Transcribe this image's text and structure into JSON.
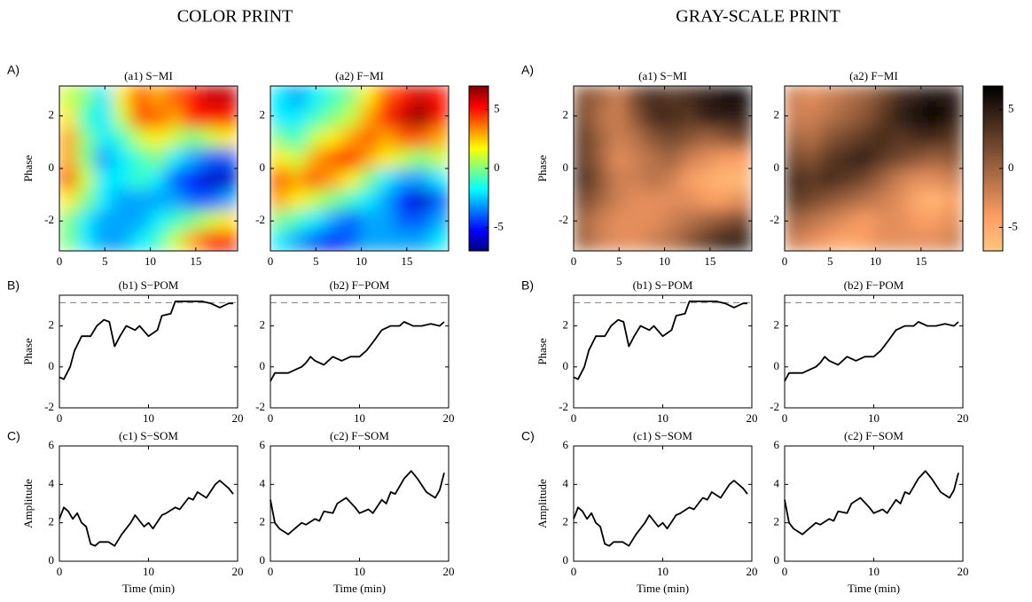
{
  "headings": [
    "COLOR PRINT",
    "GRAY-SCALE PRINT"
  ],
  "row_labels": [
    "A)",
    "B)",
    "C)"
  ],
  "chart_data": [
    {
      "type": "heatmap",
      "title": "(a1) S−MI",
      "ylabel": "Phase",
      "xlim": [
        0,
        19.6
      ],
      "xticks": [
        0,
        5,
        10,
        15
      ],
      "ylim": [
        -3.14,
        3.14
      ],
      "yticks": [
        -2,
        0,
        2
      ],
      "colormap": "jet",
      "clim": [
        -7,
        7
      ],
      "z": [
        [
          0,
          -2,
          -3,
          -3,
          -2,
          -1,
          1,
          3,
          5,
          5
        ],
        [
          0,
          -2,
          -3,
          -3,
          -3,
          -2,
          -1,
          0,
          1,
          2
        ],
        [
          2,
          0,
          -2,
          -3,
          -3,
          -3,
          -3,
          -4,
          -4,
          -3
        ],
        [
          4,
          1,
          -2,
          -2,
          -1,
          -2,
          -4,
          -5,
          -6,
          -6
        ],
        [
          3,
          0,
          -3,
          -2,
          -1,
          0,
          -2,
          -3,
          -4,
          -4
        ],
        [
          3,
          0,
          -2,
          -1,
          1,
          2,
          1,
          0,
          1,
          2
        ],
        [
          2,
          -1,
          -2,
          1,
          4,
          4,
          3,
          5,
          5,
          5
        ],
        [
          1,
          0,
          -2,
          2,
          4,
          3,
          4,
          5,
          6,
          6
        ]
      ]
    },
    {
      "type": "heatmap",
      "title": "(a2) F−MI",
      "xlim": [
        0,
        19.6
      ],
      "xticks": [
        0,
        5,
        10,
        15
      ],
      "ylim": [
        -3.14,
        3.14
      ],
      "yticks": [
        -2,
        0,
        2
      ],
      "colormap": "jet",
      "clim": [
        -7,
        7
      ],
      "colorbar_ticks": [
        -5,
        0,
        5
      ],
      "z": [
        [
          -2,
          -3,
          -4,
          -5,
          -4,
          -3,
          -3,
          -3,
          -3,
          -2
        ],
        [
          0,
          -1,
          -2,
          -3,
          -4,
          -3,
          -3,
          -4,
          -4,
          -3
        ],
        [
          3,
          2,
          1,
          0,
          -1,
          -2,
          -3,
          -5,
          -6,
          -4
        ],
        [
          4,
          3,
          4,
          3,
          2,
          0,
          -2,
          -3,
          -3,
          -2
        ],
        [
          2,
          1,
          3,
          4,
          5,
          3,
          2,
          1,
          0,
          1
        ],
        [
          0,
          -1,
          1,
          2,
          3,
          4,
          3,
          4,
          4,
          3
        ],
        [
          -2,
          -2,
          -1,
          0,
          1,
          3,
          5,
          6,
          7,
          5
        ],
        [
          -2,
          -3,
          -2,
          -1,
          0,
          2,
          4,
          5,
          6,
          5
        ]
      ]
    },
    {
      "type": "line",
      "title": "(b1) S−POM",
      "ylabel": "Phase",
      "xlim": [
        0,
        20
      ],
      "xticks": [
        0,
        10,
        20
      ],
      "ylim": [
        -2,
        3.5
      ],
      "yticks": [
        -2,
        0,
        2
      ],
      "color": "#000000",
      "reference_line": {
        "value": 3.14,
        "color": "#2db82d"
      },
      "x": [
        0,
        0.5,
        1.2,
        1.7,
        2.5,
        3.5,
        4.2,
        5,
        5.6,
        6.2,
        6.8,
        7.5,
        8.5,
        9,
        10,
        11,
        11.5,
        12.5,
        13,
        15,
        16,
        17,
        18,
        19,
        19.5
      ],
      "values": [
        -0.5,
        -0.6,
        0,
        0.8,
        1.5,
        1.5,
        2,
        2.3,
        2.2,
        1,
        1.5,
        2,
        1.8,
        2,
        1.5,
        1.8,
        2.5,
        2.6,
        3.2,
        3.2,
        3.2,
        3.1,
        2.9,
        3.1,
        3.1
      ]
    },
    {
      "type": "line",
      "title": "(b2) F−POM",
      "xlim": [
        0,
        20
      ],
      "xticks": [
        0,
        10,
        20
      ],
      "ylim": [
        -2,
        3.5
      ],
      "yticks": [
        -2,
        0,
        2
      ],
      "color": "#000000",
      "reference_line": {
        "value": 3.14,
        "color": "#2db82d"
      },
      "x": [
        0,
        0.5,
        2,
        3,
        3.5,
        4,
        4.5,
        5,
        6,
        7,
        8,
        9,
        10,
        10.8,
        11.5,
        12.5,
        13.5,
        14.5,
        15,
        16,
        17,
        18,
        19,
        19.5
      ],
      "values": [
        -0.7,
        -0.3,
        -0.3,
        -0.1,
        0,
        0.2,
        0.5,
        0.3,
        0.1,
        0.5,
        0.3,
        0.5,
        0.5,
        0.8,
        1.2,
        1.8,
        2,
        2,
        2.2,
        2,
        2,
        2.1,
        2,
        2.2
      ]
    },
    {
      "type": "line",
      "title": "(c1) S−SOM",
      "ylabel": "Amplitude",
      "xlabel": "Time (min)",
      "xlim": [
        0,
        20
      ],
      "xticks": [
        0,
        10,
        20
      ],
      "ylim": [
        0,
        6
      ],
      "yticks": [
        0,
        2,
        4,
        6
      ],
      "color": "#000000",
      "x": [
        0,
        0.5,
        1,
        1.5,
        2,
        2.5,
        3,
        3.5,
        4,
        4.5,
        5.5,
        6.2,
        7,
        8,
        8.5,
        9.5,
        10,
        10.5,
        11.5,
        12,
        13,
        13.5,
        14.5,
        15,
        15.5,
        16.5,
        17.5,
        18,
        19,
        19.5
      ],
      "values": [
        2.2,
        2.8,
        2.6,
        2.2,
        2.5,
        2,
        1.8,
        0.9,
        0.8,
        1,
        1,
        0.8,
        1.4,
        2,
        2.4,
        1.8,
        2,
        1.7,
        2.4,
        2.5,
        2.8,
        2.7,
        3.3,
        3.2,
        3.6,
        3.3,
        4,
        4.2,
        3.8,
        3.5
      ]
    },
    {
      "type": "line",
      "title": "(c2) F−SOM",
      "xlabel": "Time (min)",
      "xlim": [
        0,
        20
      ],
      "xticks": [
        0,
        10,
        20
      ],
      "ylim": [
        0,
        6
      ],
      "yticks": [
        0,
        2,
        4,
        6
      ],
      "color": "#000000",
      "x": [
        0,
        0.5,
        1,
        2,
        2.5,
        3.5,
        4,
        5,
        5.5,
        6,
        7,
        7.5,
        8.5,
        9.5,
        10,
        11,
        11.5,
        12.5,
        13,
        13.5,
        14,
        15,
        15.8,
        16.5,
        17.5,
        18.5,
        19,
        19.5
      ],
      "values": [
        3.2,
        2,
        1.7,
        1.4,
        1.6,
        2,
        1.9,
        2.2,
        2.1,
        2.6,
        2.5,
        3,
        3.3,
        2.8,
        2.5,
        2.7,
        2.5,
        3.2,
        3,
        3.6,
        3.5,
        4.3,
        4.7,
        4.3,
        3.6,
        3.3,
        3.7,
        4.6
      ]
    },
    {
      "type": "heatmap",
      "title": "(a1) S−MI",
      "ylabel": "Phase",
      "xlim": [
        0,
        19.6
      ],
      "xticks": [
        0,
        5,
        10,
        15
      ],
      "ylim": [
        -3.14,
        3.14
      ],
      "yticks": [
        -2,
        0,
        2
      ],
      "colormap": "copper-reversed",
      "clim": [
        -7,
        7
      ],
      "z": [
        [
          0,
          -2,
          -3,
          -3,
          -2,
          -1,
          1,
          3,
          5,
          5
        ],
        [
          0,
          -2,
          -3,
          -3,
          -3,
          -2,
          -1,
          0,
          1,
          2
        ],
        [
          2,
          0,
          -2,
          -3,
          -3,
          -3,
          -3,
          -4,
          -4,
          -3
        ],
        [
          4,
          1,
          -2,
          -2,
          -1,
          -2,
          -4,
          -5,
          -6,
          -6
        ],
        [
          3,
          0,
          -3,
          -2,
          -1,
          0,
          -2,
          -3,
          -4,
          -4
        ],
        [
          3,
          0,
          -2,
          -1,
          1,
          2,
          1,
          0,
          1,
          2
        ],
        [
          2,
          -1,
          -2,
          1,
          4,
          4,
          3,
          5,
          5,
          5
        ],
        [
          1,
          0,
          -2,
          2,
          4,
          3,
          4,
          5,
          6,
          6
        ]
      ]
    },
    {
      "type": "heatmap",
      "title": "(a2) F−MI",
      "xlim": [
        0,
        19.6
      ],
      "xticks": [
        0,
        5,
        10,
        15
      ],
      "ylim": [
        -3.14,
        3.14
      ],
      "yticks": [
        -2,
        0,
        2
      ],
      "colormap": "copper-reversed",
      "clim": [
        -7,
        7
      ],
      "colorbar_ticks": [
        -5,
        0,
        5
      ],
      "z": [
        [
          -2,
          -3,
          -4,
          -5,
          -4,
          -3,
          -3,
          -3,
          -3,
          -2
        ],
        [
          0,
          -1,
          -2,
          -3,
          -4,
          -3,
          -3,
          -4,
          -4,
          -3
        ],
        [
          3,
          2,
          1,
          0,
          -1,
          -2,
          -3,
          -5,
          -6,
          -4
        ],
        [
          4,
          3,
          4,
          3,
          2,
          0,
          -2,
          -3,
          -3,
          -2
        ],
        [
          2,
          1,
          3,
          4,
          5,
          3,
          2,
          1,
          0,
          1
        ],
        [
          0,
          -1,
          1,
          2,
          3,
          4,
          3,
          4,
          4,
          3
        ],
        [
          -2,
          -2,
          -1,
          0,
          1,
          3,
          5,
          6,
          7,
          5
        ],
        [
          -2,
          -3,
          -2,
          -1,
          0,
          2,
          4,
          5,
          6,
          5
        ]
      ]
    },
    {
      "type": "line",
      "title": "(b1) S−POM",
      "ylabel": "Phase",
      "xlim": [
        0,
        20
      ],
      "xticks": [
        0,
        10,
        20
      ],
      "ylim": [
        -2,
        3.5
      ],
      "yticks": [
        -2,
        0,
        2
      ],
      "color": "#000000",
      "reference_line": {
        "value": 3.14,
        "color": "#2db82d"
      },
      "x": [
        0,
        0.5,
        1.2,
        1.7,
        2.5,
        3.5,
        4.2,
        5,
        5.6,
        6.2,
        6.8,
        7.5,
        8.5,
        9,
        10,
        11,
        11.5,
        12.5,
        13,
        15,
        16,
        17,
        18,
        19,
        19.5
      ],
      "values": [
        -0.5,
        -0.6,
        0,
        0.8,
        1.5,
        1.5,
        2,
        2.3,
        2.2,
        1,
        1.5,
        2,
        1.8,
        2,
        1.5,
        1.8,
        2.5,
        2.6,
        3.2,
        3.2,
        3.2,
        3.1,
        2.9,
        3.1,
        3.1
      ]
    },
    {
      "type": "line",
      "title": "(b2) F−POM",
      "xlim": [
        0,
        20
      ],
      "xticks": [
        0,
        10,
        20
      ],
      "ylim": [
        -2,
        3.5
      ],
      "yticks": [
        -2,
        0,
        2
      ],
      "color": "#000000",
      "reference_line": {
        "value": 3.14,
        "color": "#2db82d"
      },
      "x": [
        0,
        0.5,
        2,
        3,
        3.5,
        4,
        4.5,
        5,
        6,
        7,
        8,
        9,
        10,
        10.8,
        11.5,
        12.5,
        13.5,
        14.5,
        15,
        16,
        17,
        18,
        19,
        19.5
      ],
      "values": [
        -0.7,
        -0.3,
        -0.3,
        -0.1,
        0,
        0.2,
        0.5,
        0.3,
        0.1,
        0.5,
        0.3,
        0.5,
        0.5,
        0.8,
        1.2,
        1.8,
        2,
        2,
        2.2,
        2,
        2,
        2.1,
        2,
        2.2
      ]
    },
    {
      "type": "line",
      "title": "(c1) S−SOM",
      "ylabel": "Amplitude",
      "xlabel": "Time (min)",
      "xlim": [
        0,
        20
      ],
      "xticks": [
        0,
        10,
        20
      ],
      "ylim": [
        0,
        6
      ],
      "yticks": [
        0,
        2,
        4,
        6
      ],
      "color": "#000000",
      "x": [
        0,
        0.5,
        1,
        1.5,
        2,
        2.5,
        3,
        3.5,
        4,
        4.5,
        5.5,
        6.2,
        7,
        8,
        8.5,
        9.5,
        10,
        10.5,
        11.5,
        12,
        13,
        13.5,
        14.5,
        15,
        15.5,
        16.5,
        17.5,
        18,
        19,
        19.5
      ],
      "values": [
        2.2,
        2.8,
        2.6,
        2.2,
        2.5,
        2,
        1.8,
        0.9,
        0.8,
        1,
        1,
        0.8,
        1.4,
        2,
        2.4,
        1.8,
        2,
        1.7,
        2.4,
        2.5,
        2.8,
        2.7,
        3.3,
        3.2,
        3.6,
        3.3,
        4,
        4.2,
        3.8,
        3.5
      ]
    },
    {
      "type": "line",
      "title": "(c2) F−SOM",
      "xlabel": "Time (min)",
      "xlim": [
        0,
        20
      ],
      "xticks": [
        0,
        10,
        20
      ],
      "ylim": [
        0,
        6
      ],
      "yticks": [
        0,
        2,
        4,
        6
      ],
      "color": "#000000",
      "x": [
        0,
        0.5,
        1,
        2,
        2.5,
        3.5,
        4,
        5,
        5.5,
        6,
        7,
        7.5,
        8.5,
        9.5,
        10,
        11,
        11.5,
        12.5,
        13,
        13.5,
        14,
        15,
        15.8,
        16.5,
        17.5,
        18.5,
        19,
        19.5
      ],
      "values": [
        3.2,
        2,
        1.7,
        1.4,
        1.6,
        2,
        1.9,
        2.2,
        2.1,
        2.6,
        2.5,
        3,
        3.3,
        2.8,
        2.5,
        2.7,
        2.5,
        3.2,
        3,
        3.6,
        3.5,
        4.3,
        4.7,
        4.3,
        3.6,
        3.3,
        3.7,
        4.6
      ]
    }
  ]
}
